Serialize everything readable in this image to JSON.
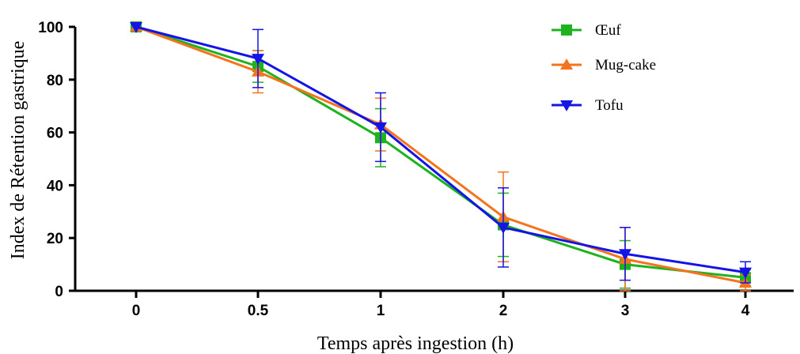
{
  "chart_data": {
    "type": "line",
    "title": "",
    "xlabel": "Temps après ingestion (h)",
    "ylabel": "Index de Rétention gastrique",
    "categories": [
      "0",
      "0.5",
      "1",
      "2",
      "3",
      "4"
    ],
    "ylim": [
      0,
      100
    ],
    "yticks": [
      "0",
      "20",
      "40",
      "60",
      "80",
      "100"
    ],
    "grid": false,
    "legend_position": "top-right",
    "series": [
      {
        "name": "Œuf",
        "color": "#1fb21f",
        "marker": "square",
        "values": [
          100,
          85,
          58,
          25,
          10,
          5
        ],
        "errors": [
          0,
          6,
          11,
          12,
          9,
          3
        ]
      },
      {
        "name": "Mug-cake",
        "color": "#f4731c",
        "marker": "triangle-up",
        "values": [
          100,
          83,
          63,
          28,
          12,
          3
        ],
        "errors": [
          0,
          8,
          10,
          17,
          12,
          3
        ]
      },
      {
        "name": "Tofu",
        "color": "#1414e6",
        "marker": "triangle-down",
        "values": [
          100,
          88,
          62,
          24,
          14,
          7
        ],
        "errors": [
          0,
          11,
          13,
          15,
          10,
          4
        ]
      }
    ]
  }
}
